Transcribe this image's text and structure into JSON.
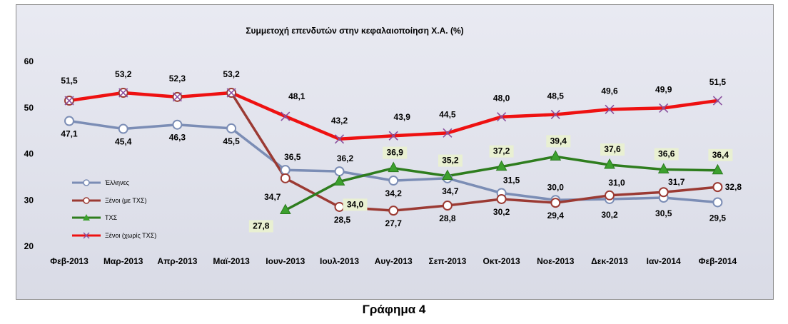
{
  "caption": "Γράφημα 4",
  "chart_data": {
    "type": "line",
    "title": "Συμμετοχή επενδυτών στην κεφαλαιοποίηση Χ.Α. (%)",
    "categories": [
      "Φεβ-2013",
      "Μαρ-2013",
      "Απρ-2013",
      "Μαϊ-2013",
      "Ιουν-2013",
      "Ιουλ-2013",
      "Αυγ-2013",
      "Σεπ-2013",
      "Οκτ-2013",
      "Νοε-2013",
      "Δεκ-2013",
      "Ιαν-2014",
      "Φεβ-2014"
    ],
    "ylim": [
      20,
      60
    ],
    "yticks": [
      "20",
      "30",
      "40",
      "50",
      "60"
    ],
    "legend_position": "left-middle",
    "grid": false,
    "series": [
      {
        "name": "Έλληνες",
        "color": "#7b8db5",
        "marker": "circle",
        "values": [
          47.1,
          45.4,
          46.3,
          45.5,
          36.5,
          36.2,
          34.2,
          34.7,
          31.5,
          30.0,
          30.2,
          30.5,
          29.5
        ],
        "labels": [
          "47,1",
          "45,4",
          "46,3",
          "45,5",
          "36,5",
          "36,2",
          "34,2",
          "34,7",
          "31,5",
          "30,0",
          "30,2",
          "30,5",
          "29,5"
        ]
      },
      {
        "name": "Ξένοι (με ΤΧΣ)",
        "color": "#9b3a33",
        "marker": "circle",
        "values": [
          51.5,
          53.2,
          52.3,
          53.2,
          34.7,
          28.5,
          27.7,
          28.8,
          30.2,
          29.4,
          31.0,
          31.7,
          32.8
        ],
        "labels": [
          "",
          "",
          "",
          "",
          "34,7",
          "28,5",
          "27,7",
          "28,8",
          "30,2",
          "29,4",
          "31,0",
          "31,7",
          "32,8"
        ]
      },
      {
        "name": "ΤΧΣ",
        "color": "#2e7d1e",
        "marker": "triangle",
        "values": [
          null,
          null,
          null,
          null,
          27.8,
          34.0,
          36.9,
          35.2,
          37.2,
          39.4,
          37.6,
          36.6,
          36.4
        ],
        "labels": [
          "",
          "",
          "",
          "",
          "27,8",
          "34,0",
          "36,9",
          "35,2",
          "37,2",
          "39,4",
          "37,6",
          "36,6",
          "36,4"
        ]
      },
      {
        "name": "Ξένοι (χωρίς ΤΧΣ)",
        "color": "#ee1111",
        "marker": "x",
        "values": [
          51.5,
          53.2,
          52.3,
          53.2,
          48.1,
          43.2,
          43.9,
          44.5,
          48.0,
          48.5,
          49.6,
          49.9,
          51.5
        ],
        "labels": [
          "51,5",
          "53,2",
          "52,3",
          "53,2",
          "48,1",
          "43,2",
          "43,9",
          "44,5",
          "48,0",
          "48,5",
          "49,6",
          "49,9",
          "51,5"
        ]
      }
    ]
  }
}
